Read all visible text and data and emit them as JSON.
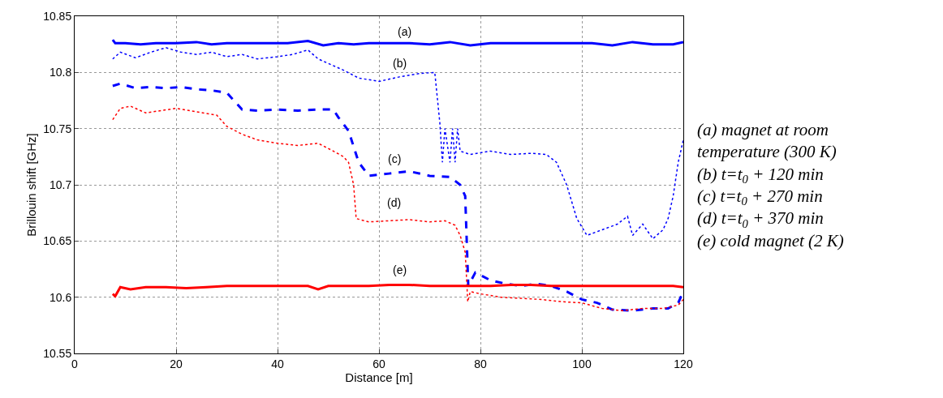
{
  "chart_data": {
    "type": "line",
    "xlabel": "Distance [m]",
    "ylabel": "Brillouin shift [GHz]",
    "xlim": [
      0,
      120
    ],
    "xticks": [
      0,
      20,
      40,
      60,
      80,
      100,
      120
    ],
    "ylim": [
      10.55,
      10.85
    ],
    "yticks": [
      10.55,
      10.6,
      10.65,
      10.7,
      10.75,
      10.8,
      10.85
    ],
    "grid": true,
    "marker": "none",
    "series": [
      {
        "color": "#0000ff",
        "line_style": "solid",
        "x": [
          7.5,
          8,
          10,
          13,
          16,
          20,
          24,
          27,
          30,
          34,
          38,
          42,
          46,
          49,
          52,
          55,
          58,
          62,
          66,
          70,
          74,
          78,
          82,
          86,
          90,
          94,
          98,
          102,
          106,
          110,
          114,
          118,
          120
        ],
        "values": [
          10.829,
          10.826,
          10.826,
          10.825,
          10.826,
          10.826,
          10.827,
          10.825,
          10.826,
          10.826,
          10.826,
          10.826,
          10.828,
          10.824,
          10.826,
          10.825,
          10.826,
          10.826,
          10.826,
          10.825,
          10.827,
          10.824,
          10.826,
          10.826,
          10.826,
          10.826,
          10.826,
          10.826,
          10.824,
          10.827,
          10.825,
          10.825,
          10.827
        ]
      },
      {
        "color": "#0000ff",
        "line_style": "dotted",
        "x": [
          7.5,
          9,
          12,
          15,
          18,
          21,
          24,
          27,
          30,
          33,
          36,
          40,
          43,
          46,
          48,
          50,
          53,
          56,
          60,
          64,
          68,
          71,
          72,
          72.5,
          73,
          74,
          74.5,
          75,
          75.5,
          76,
          78,
          82,
          86,
          90,
          93,
          95,
          97,
          99,
          101,
          104,
          107,
          109,
          110,
          112,
          114,
          116,
          117,
          118,
          119,
          120
        ],
        "values": [
          10.812,
          10.818,
          10.813,
          10.818,
          10.822,
          10.818,
          10.816,
          10.818,
          10.814,
          10.816,
          10.812,
          10.814,
          10.816,
          10.82,
          10.812,
          10.808,
          10.802,
          10.795,
          10.792,
          10.796,
          10.799,
          10.8,
          10.755,
          10.72,
          10.75,
          10.72,
          10.75,
          10.72,
          10.75,
          10.73,
          10.727,
          10.73,
          10.727,
          10.728,
          10.727,
          10.72,
          10.7,
          10.67,
          10.655,
          10.66,
          10.665,
          10.672,
          10.655,
          10.665,
          10.652,
          10.66,
          10.67,
          10.69,
          10.72,
          10.74
        ]
      },
      {
        "color": "#0000ff",
        "line_style": "dashed",
        "x": [
          7.5,
          9,
          12,
          15,
          18,
          21,
          24,
          27,
          30,
          33,
          36,
          40,
          44,
          48,
          51,
          52,
          54,
          56,
          58,
          62,
          66,
          70,
          74,
          76,
          77,
          77.3,
          77.6,
          79,
          82,
          85,
          88,
          91,
          94,
          97,
          100,
          103,
          106,
          110,
          114,
          117,
          119,
          120
        ],
        "values": [
          10.788,
          10.79,
          10.786,
          10.787,
          10.786,
          10.787,
          10.785,
          10.784,
          10.782,
          10.767,
          10.766,
          10.767,
          10.766,
          10.767,
          10.767,
          10.76,
          10.748,
          10.72,
          10.708,
          10.71,
          10.712,
          10.708,
          10.707,
          10.7,
          10.69,
          10.65,
          10.61,
          10.622,
          10.615,
          10.612,
          10.61,
          10.612,
          10.61,
          10.605,
          10.598,
          10.595,
          10.589,
          10.588,
          10.59,
          10.59,
          10.595,
          10.605
        ]
      },
      {
        "color": "#ff0000",
        "line_style": "dotted",
        "x": [
          7.5,
          9,
          11,
          14,
          17,
          20,
          24,
          28,
          30,
          33,
          36,
          40,
          44,
          48,
          51,
          53,
          54,
          55,
          55.5,
          58,
          62,
          66,
          70,
          73,
          75,
          76,
          77,
          77.5,
          78,
          80,
          84,
          88,
          92,
          96,
          100,
          104,
          108,
          112,
          116,
          119,
          120
        ],
        "values": [
          10.758,
          10.768,
          10.77,
          10.764,
          10.766,
          10.768,
          10.765,
          10.762,
          10.752,
          10.745,
          10.74,
          10.737,
          10.735,
          10.737,
          10.73,
          10.725,
          10.72,
          10.7,
          10.67,
          10.667,
          10.668,
          10.669,
          10.667,
          10.668,
          10.664,
          10.655,
          10.64,
          10.596,
          10.605,
          10.603,
          10.6,
          10.599,
          10.598,
          10.596,
          10.595,
          10.59,
          10.588,
          10.59,
          10.59,
          10.593,
          10.598
        ]
      },
      {
        "color": "#ff0000",
        "line_style": "solid",
        "x": [
          7.5,
          8,
          9,
          11,
          14,
          18,
          22,
          26,
          30,
          34,
          38,
          42,
          46,
          48,
          50,
          54,
          58,
          62,
          66,
          70,
          74,
          78,
          82,
          86,
          90,
          94,
          98,
          102,
          106,
          110,
          114,
          118,
          120
        ],
        "values": [
          10.603,
          10.601,
          10.609,
          10.607,
          10.609,
          10.609,
          10.608,
          10.609,
          10.61,
          10.61,
          10.61,
          10.61,
          10.61,
          10.607,
          10.61,
          10.61,
          10.61,
          10.611,
          10.611,
          10.61,
          10.61,
          10.61,
          10.61,
          10.611,
          10.611,
          10.61,
          10.61,
          10.61,
          10.61,
          10.61,
          10.61,
          10.61,
          10.609
        ]
      }
    ],
    "annotations": [
      {
        "text": "(a)",
        "x": 65,
        "y": 10.836
      },
      {
        "text": "(b)",
        "x": 64,
        "y": 10.808
      },
      {
        "text": "(c)",
        "x": 63,
        "y": 10.723
      },
      {
        "text": "(d)",
        "x": 63,
        "y": 10.684
      },
      {
        "text": "(e)",
        "x": 64,
        "y": 10.624
      },
      "(a) magnet at room temperature (300 K)",
      "(b) t=t$_{0}$ + 120 min",
      "(c) t=t$_{0}$ + 270 min",
      "(d) t=t$_{0}$ + 370 min",
      "(e) cold magnet (2 K)"
    ]
  }
}
